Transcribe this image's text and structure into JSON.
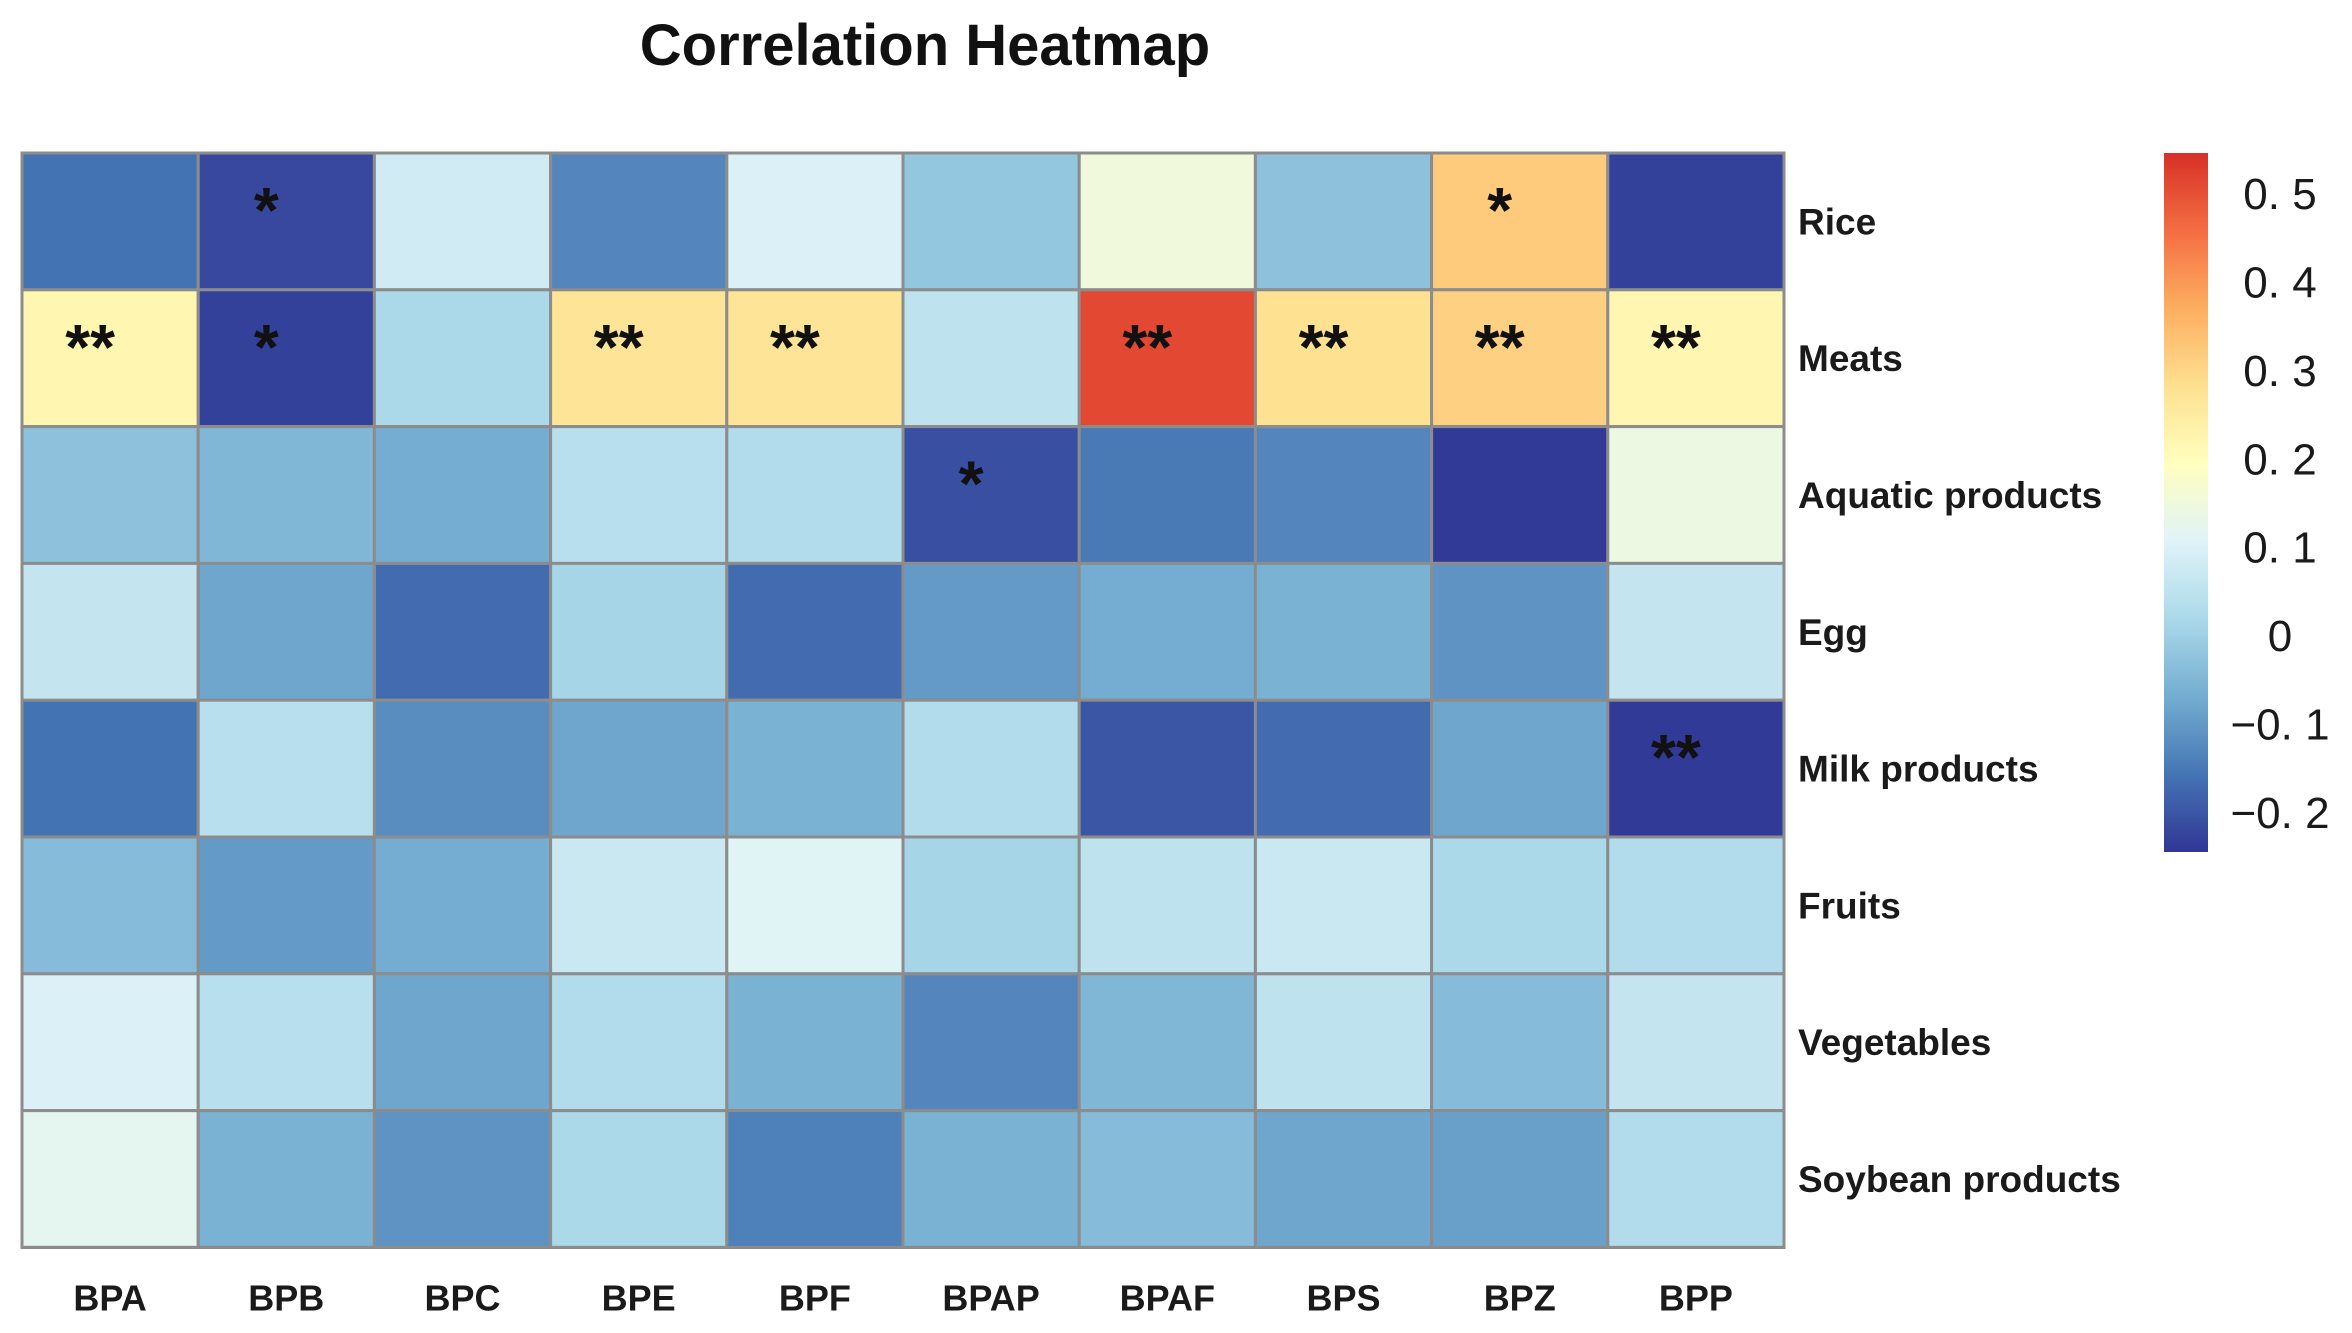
{
  "chart_data": {
    "type": "heatmap",
    "title": "Correlation Heatmap",
    "columns": [
      "BPA",
      "BPB",
      "BPC",
      "BPE",
      "BPF",
      "BPAP",
      "BPAF",
      "BPS",
      "BPZ",
      "BPP"
    ],
    "rows": [
      "Rice",
      "Meats",
      "Aquatic products",
      "Egg",
      "Milk products",
      "Fruits",
      "Vegetables",
      "Soybean products"
    ],
    "values": [
      [
        -0.16,
        -0.22,
        0.08,
        -0.13,
        0.1,
        -0.02,
        0.15,
        -0.03,
        0.32,
        -0.23
      ],
      [
        0.22,
        -0.23,
        0.02,
        0.27,
        0.27,
        0.05,
        0.51,
        0.28,
        0.31,
        0.22
      ],
      [
        -0.03,
        -0.05,
        -0.07,
        0.04,
        0.03,
        -0.21,
        -0.15,
        -0.13,
        -0.24,
        0.14
      ],
      [
        0.06,
        -0.08,
        -0.17,
        0.01,
        -0.17,
        -0.1,
        -0.07,
        -0.06,
        -0.11,
        0.06
      ],
      [
        -0.16,
        0.04,
        -0.12,
        -0.08,
        -0.06,
        0.03,
        -0.2,
        -0.17,
        -0.08,
        -0.24
      ],
      [
        -0.04,
        -0.1,
        -0.07,
        0.07,
        0.11,
        0.01,
        0.05,
        0.07,
        0.02,
        0.03
      ],
      [
        0.1,
        0.04,
        -0.08,
        0.03,
        -0.06,
        -0.13,
        -0.05,
        0.05,
        -0.04,
        0.06
      ],
      [
        0.12,
        -0.06,
        -0.11,
        0.02,
        -0.14,
        -0.06,
        -0.04,
        -0.08,
        -0.09,
        0.03
      ]
    ],
    "significance": [
      [
        "",
        "*",
        "",
        "",
        "",
        "",
        "",
        "",
        "*",
        ""
      ],
      [
        "**",
        "*",
        "",
        "**",
        "**",
        "",
        "**",
        "**",
        "**",
        "**"
      ],
      [
        "",
        "",
        "",
        "",
        "",
        "*",
        "",
        "",
        "",
        ""
      ],
      [
        "",
        "",
        "",
        "",
        "",
        "",
        "",
        "",
        "",
        ""
      ],
      [
        "",
        "",
        "",
        "",
        "",
        "",
        "",
        "",
        "",
        "**"
      ],
      [
        "",
        "",
        "",
        "",
        "",
        "",
        "",
        "",
        "",
        ""
      ],
      [
        "",
        "",
        "",
        "",
        "",
        "",
        "",
        "",
        "",
        ""
      ],
      [
        "",
        "",
        "",
        "",
        "",
        "",
        "",
        "",
        "",
        ""
      ]
    ],
    "colorbar": {
      "min": -0.245,
      "max": 0.545,
      "ticks": [
        0.5,
        0.4,
        0.3,
        0.2,
        0.1,
        0,
        -0.1,
        -0.2
      ],
      "tick_labels": [
        "0. 5",
        "0. 4",
        "0. 3",
        "0. 2",
        "0. 1",
        "0",
        "−0. 1",
        "−0. 2"
      ],
      "colors": [
        "#313695",
        "#4575b4",
        "#74add1",
        "#abd9e9",
        "#e0f3f8",
        "#ffffbf",
        "#fee090",
        "#fdae61",
        "#f46d43",
        "#d73027"
      ]
    },
    "legend": "right"
  }
}
